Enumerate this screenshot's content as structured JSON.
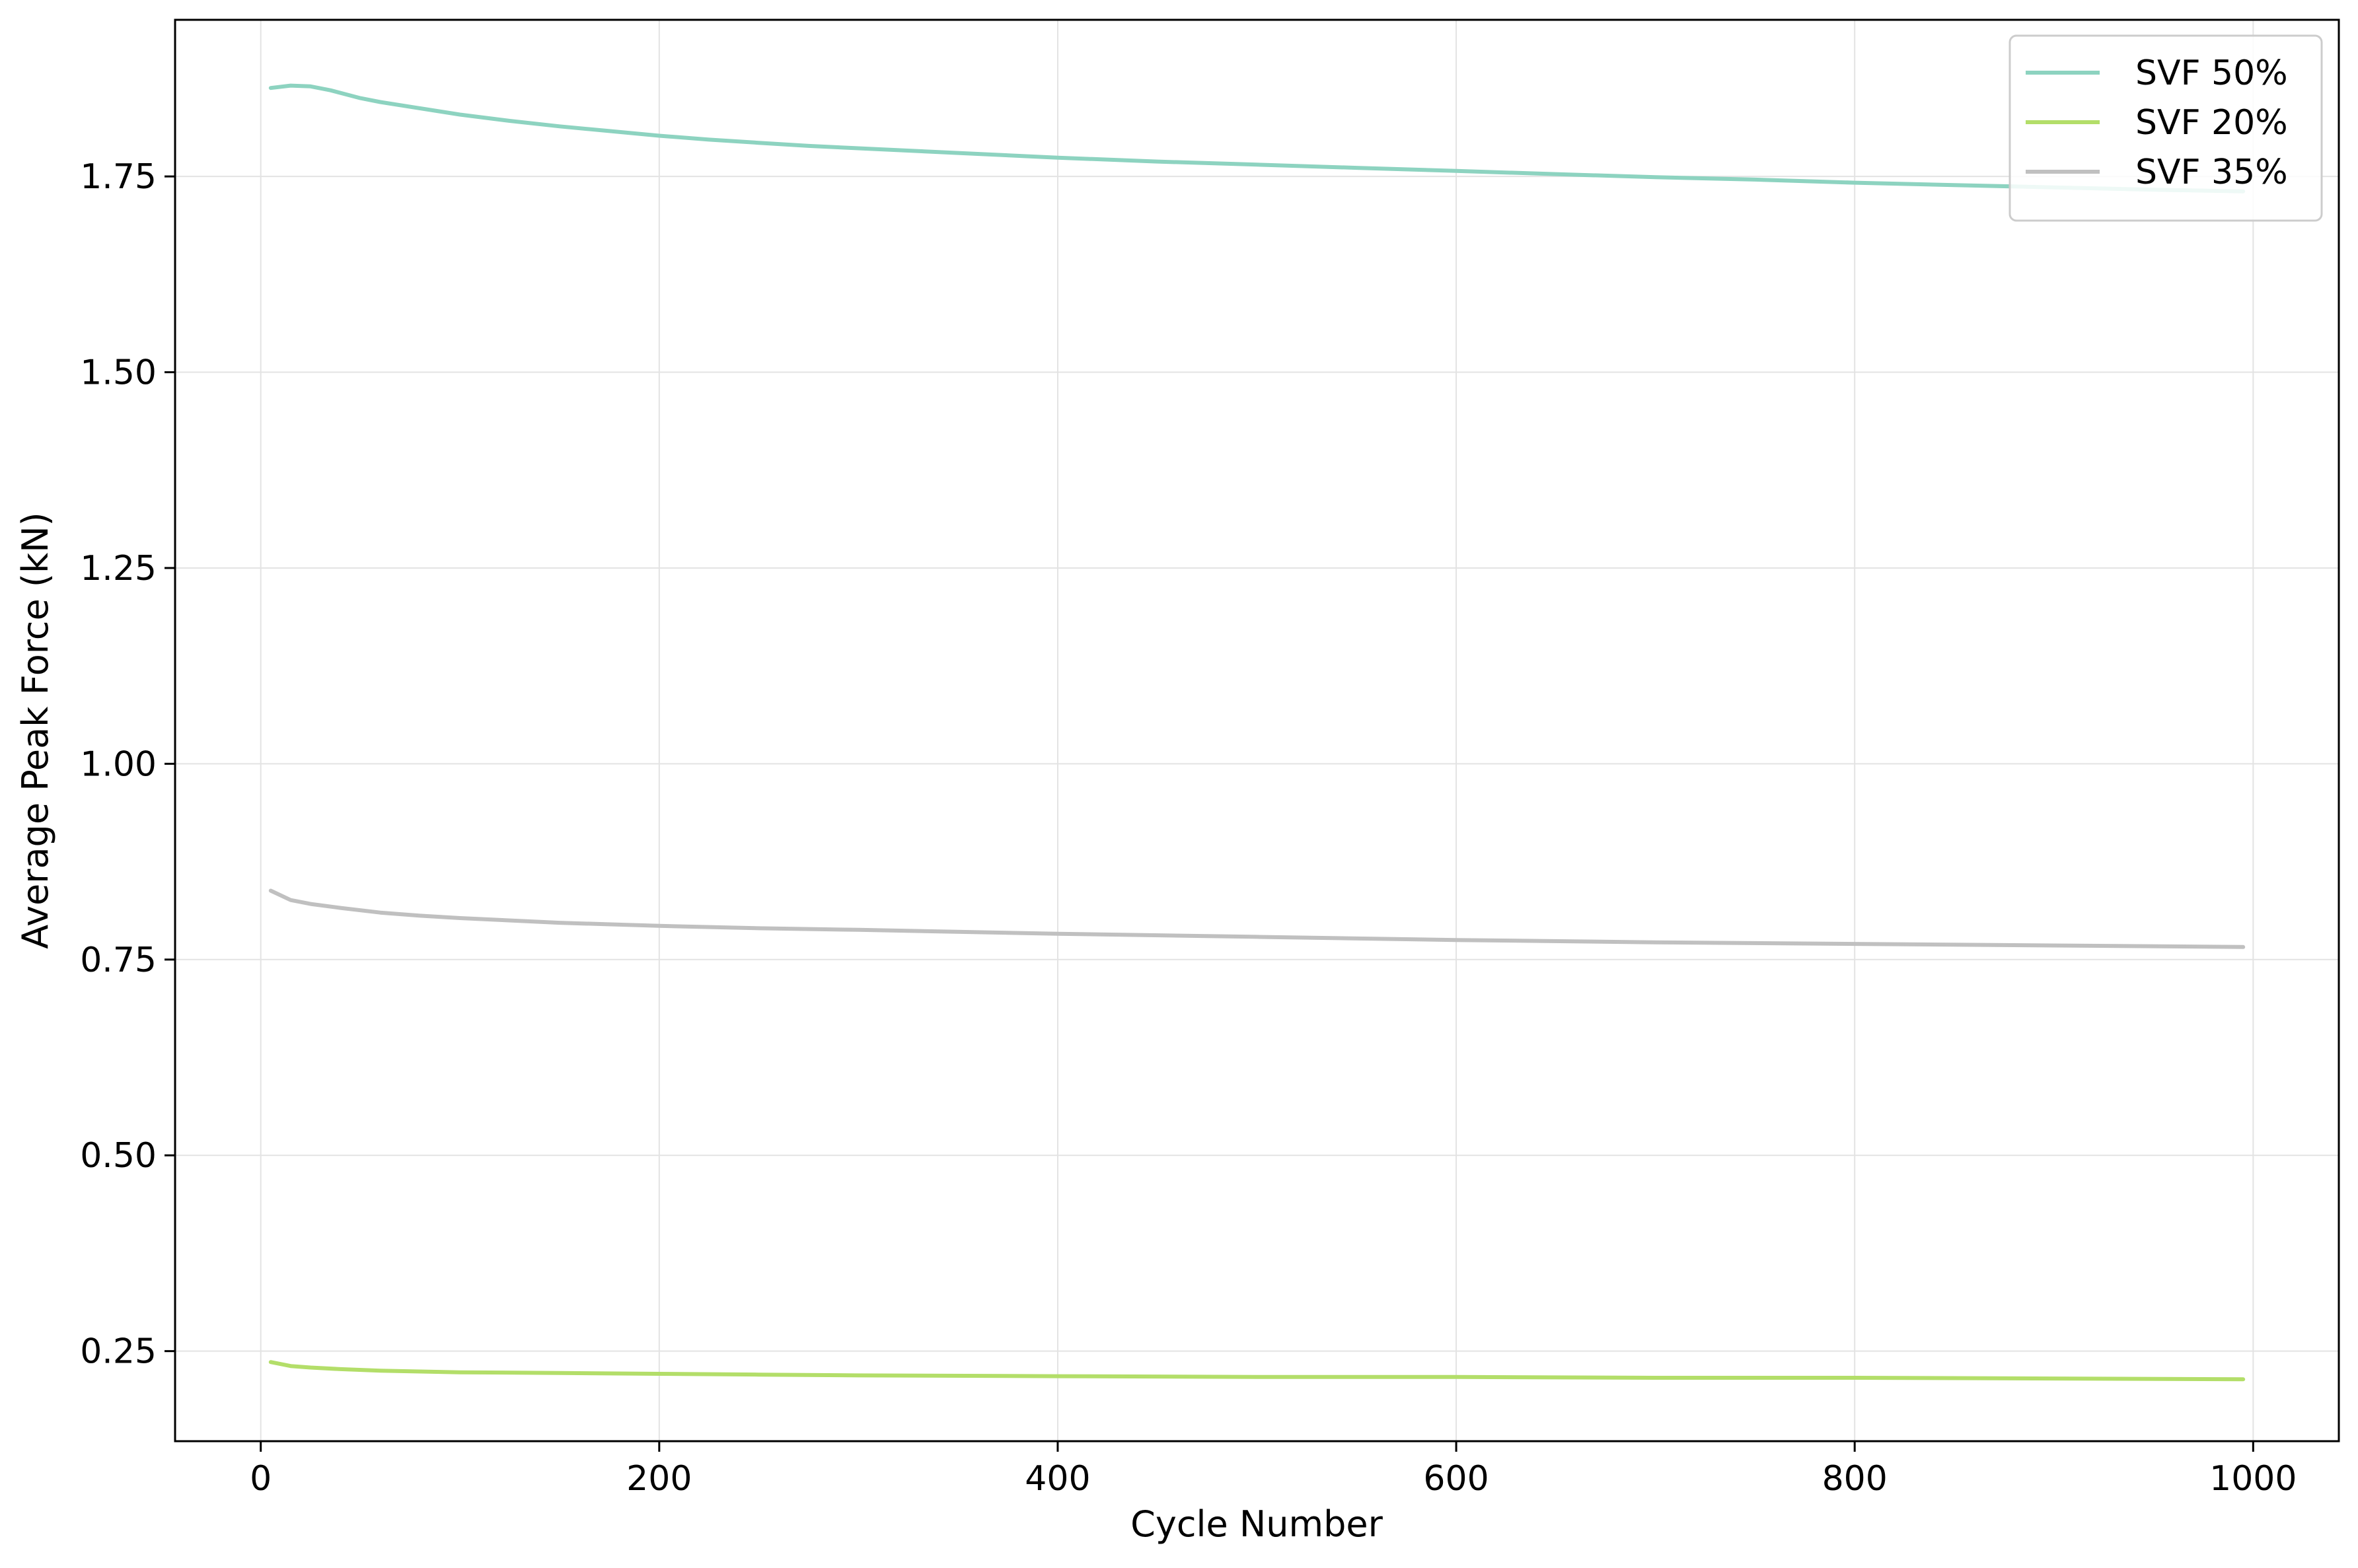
{
  "chart_data": {
    "type": "line",
    "title": "",
    "xlabel": "Cycle Number",
    "ylabel": "Average Peak Force (kN)",
    "xlim": [
      -43,
      1043
    ],
    "ylim": [
      0.135,
      1.95
    ],
    "xticks": [
      0,
      200,
      400,
      600,
      800,
      1000
    ],
    "xtick_labels": [
      "0",
      "200",
      "400",
      "600",
      "800",
      "1000"
    ],
    "yticks": [
      0.25,
      0.5,
      0.75,
      1.0,
      1.25,
      1.5,
      1.75
    ],
    "ytick_labels": [
      "0.25",
      "0.50",
      "0.75",
      "1.00",
      "1.25",
      "1.50",
      "1.75"
    ],
    "grid": true,
    "legend_position": "top-right",
    "series": [
      {
        "name": "SVF 50%",
        "color": "#8dd3c0",
        "x": [
          5,
          15,
          25,
          35,
          50,
          60,
          80,
          100,
          125,
          150,
          175,
          200,
          225,
          250,
          275,
          300,
          350,
          400,
          450,
          500,
          550,
          600,
          650,
          700,
          750,
          800,
          850,
          900,
          950,
          995
        ],
        "y": [
          1.863,
          1.866,
          1.865,
          1.86,
          1.85,
          1.845,
          1.837,
          1.829,
          1.821,
          1.814,
          1.808,
          1.802,
          1.797,
          1.793,
          1.789,
          1.786,
          1.78,
          1.774,
          1.769,
          1.765,
          1.761,
          1.757,
          1.753,
          1.749,
          1.746,
          1.742,
          1.739,
          1.736,
          1.733,
          1.731
        ]
      },
      {
        "name": "SVF 20%",
        "color": "#b3de69",
        "x": [
          5,
          15,
          25,
          40,
          60,
          80,
          100,
          150,
          200,
          250,
          300,
          400,
          500,
          600,
          700,
          800,
          900,
          995
        ],
        "y": [
          0.236,
          0.231,
          0.229,
          0.227,
          0.225,
          0.224,
          0.223,
          0.222,
          0.221,
          0.22,
          0.219,
          0.218,
          0.217,
          0.217,
          0.216,
          0.216,
          0.215,
          0.214
        ]
      },
      {
        "name": "SVF 35%",
        "color": "#c0c0c0",
        "x": [
          5,
          15,
          25,
          40,
          60,
          80,
          100,
          150,
          200,
          250,
          300,
          400,
          500,
          600,
          700,
          800,
          900,
          995
        ],
        "y": [
          0.838,
          0.826,
          0.821,
          0.816,
          0.81,
          0.806,
          0.803,
          0.797,
          0.793,
          0.79,
          0.788,
          0.783,
          0.779,
          0.775,
          0.772,
          0.77,
          0.768,
          0.766
        ]
      }
    ]
  }
}
